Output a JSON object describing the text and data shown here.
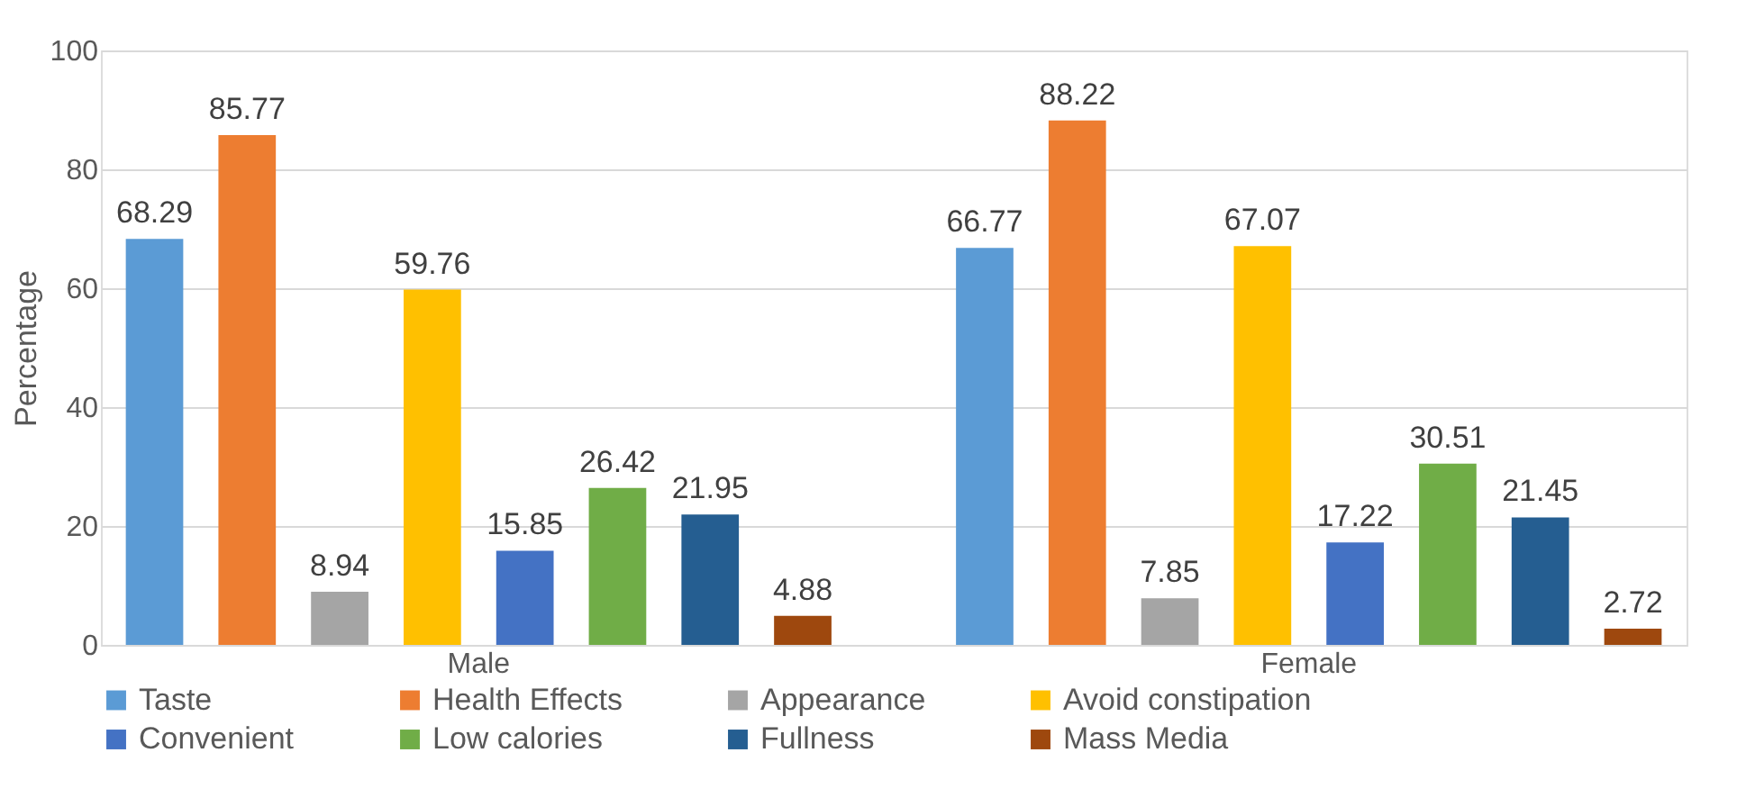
{
  "chart_data": {
    "type": "bar",
    "ylabel": "Percentage",
    "categories": [
      "Male",
      "Female"
    ],
    "series": [
      {
        "name": "Taste",
        "color": "#5b9bd5",
        "values": [
          68.29,
          66.77
        ]
      },
      {
        "name": "Health Effects",
        "color": "#ed7d31",
        "values": [
          85.77,
          88.22
        ]
      },
      {
        "name": "Appearance",
        "color": "#a5a5a5",
        "values": [
          8.94,
          7.85
        ]
      },
      {
        "name": "Avoid constipation",
        "color": "#ffc000",
        "values": [
          59.76,
          67.07
        ]
      },
      {
        "name": "Convenient",
        "color": "#4472c4",
        "values": [
          15.85,
          17.22
        ]
      },
      {
        "name": "Low calories",
        "color": "#70ad47",
        "values": [
          26.42,
          30.51
        ]
      },
      {
        "name": "Fullness",
        "color": "#255e91",
        "values": [
          21.95,
          21.45
        ]
      },
      {
        "name": "Mass Media",
        "color": "#9e480e",
        "values": [
          4.88,
          2.72
        ]
      }
    ],
    "ylim": [
      0,
      100
    ],
    "yticks": [
      0,
      20,
      40,
      60,
      80,
      100
    ],
    "grid": "y",
    "legend": "bottom",
    "data_labels": true
  }
}
